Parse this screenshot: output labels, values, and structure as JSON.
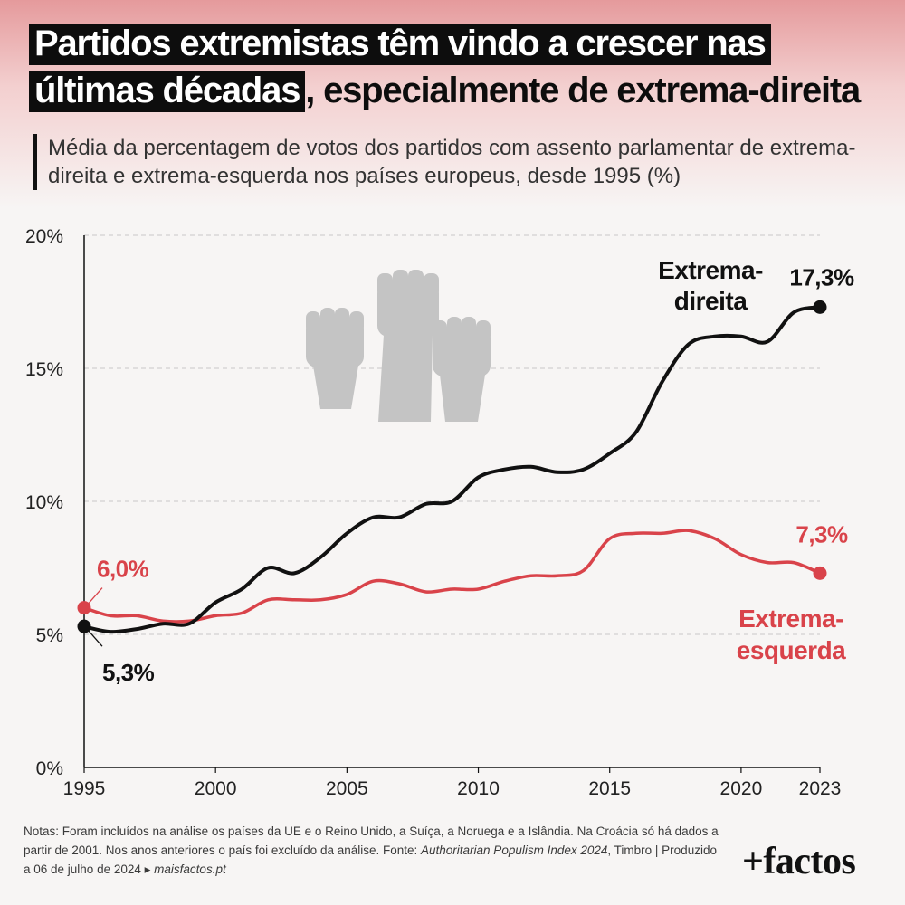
{
  "title": {
    "highlight_1": "Partidos extremistas têm vindo a crescer nas",
    "highlight_2": "últimas décadas",
    "tail": ", especialmente de extrema-direita"
  },
  "subtitle": "Média da percentagem de votos dos partidos com assento parlamentar de extrema-direita e extrema-esquerda nos países europeus, desde 1995 (%)",
  "chart_data": {
    "type": "line",
    "title": "Partidos extremistas têm vindo a crescer nas últimas décadas, especialmente de extrema-direita",
    "xlabel": "",
    "ylabel": "",
    "xlim": [
      1995,
      2023
    ],
    "ylim": [
      0,
      20
    ],
    "x_ticks": [
      1995,
      2000,
      2005,
      2010,
      2015,
      2020,
      2023
    ],
    "y_ticks": [
      0,
      5,
      10,
      15,
      20
    ],
    "y_tick_labels": [
      "0%",
      "5%",
      "10%",
      "15%",
      "20%"
    ],
    "grid": "horizontal dashed",
    "x": [
      1995,
      1996,
      1997,
      1998,
      1999,
      2000,
      2001,
      2002,
      2003,
      2004,
      2005,
      2006,
      2007,
      2008,
      2009,
      2010,
      2011,
      2012,
      2013,
      2014,
      2015,
      2016,
      2017,
      2018,
      2019,
      2020,
      2021,
      2022,
      2023
    ],
    "series": [
      {
        "name": "Extrema-direita",
        "color": "#111111",
        "values": [
          5.3,
          5.1,
          5.2,
          5.4,
          5.4,
          6.2,
          6.7,
          7.5,
          7.3,
          7.9,
          8.8,
          9.4,
          9.4,
          9.9,
          10.0,
          10.9,
          11.2,
          11.3,
          11.1,
          11.2,
          11.8,
          12.6,
          14.5,
          15.9,
          16.2,
          16.2,
          16.0,
          17.1,
          17.3
        ],
        "start_label": "5,3%",
        "end_label": "17,3%",
        "label": [
          "Extrema-",
          "direita"
        ]
      },
      {
        "name": "Extrema-esquerda",
        "color": "#d9434a",
        "values": [
          6.0,
          5.7,
          5.7,
          5.5,
          5.5,
          5.7,
          5.8,
          6.3,
          6.3,
          6.3,
          6.5,
          7.0,
          6.9,
          6.6,
          6.7,
          6.7,
          7.0,
          7.2,
          7.2,
          7.4,
          8.6,
          8.8,
          8.8,
          8.9,
          8.6,
          8.0,
          7.7,
          7.7,
          7.3
        ],
        "start_label": "6,0%",
        "end_label": "7,3%",
        "label": [
          "Extrema-",
          "esquerda"
        ]
      }
    ]
  },
  "notes": {
    "part1": "Notas: Foram incluídos na análise os países da UE e o Reino Unido, a Suíça, a Noruega e a Islândia. Na Croácia só há dados a partir de 2001. Nos anos anteriores o país foi excluído da análise. Fonte: ",
    "source_title": "Authoritarian Populism Index 2024",
    "part2": ", Timbro | Produzido a 06 de julho de 2024 ",
    "arrow": "▸",
    "site": "maisfactos.pt"
  },
  "logo": "+factos",
  "decoration_icon": "raised-fists-icon"
}
